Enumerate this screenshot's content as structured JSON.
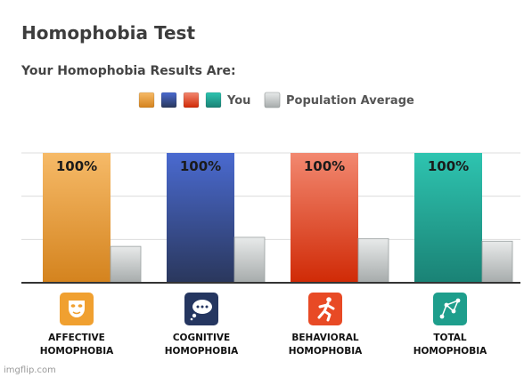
{
  "chart_data": {
    "type": "bar",
    "title": "Homophobia Test",
    "subtitle": "Your Homophobia Results Are:",
    "categories": [
      {
        "line1": "AFFECTIVE",
        "line2": "HOMOPHOBIA",
        "icon": "mask-icon"
      },
      {
        "line1": "COGNITIVE",
        "line2": "HOMOPHOBIA",
        "icon": "thought-bubble-icon"
      },
      {
        "line1": "BEHAVIORAL",
        "line2": "HOMOPHOBIA",
        "icon": "running-person-icon"
      },
      {
        "line1": "TOTAL",
        "line2": "HOMOPHOBIA",
        "icon": "network-graph-icon"
      }
    ],
    "series": [
      {
        "name": "You",
        "values": [
          100,
          100,
          100,
          100
        ],
        "labels": [
          "100%",
          "100%",
          "100%",
          "100%"
        ]
      },
      {
        "name": "Population Average",
        "values": [
          28,
          35,
          34,
          32
        ]
      }
    ],
    "ylim": [
      0,
      100
    ],
    "grid": true,
    "legend_position": "top-center",
    "colors": {
      "you": [
        {
          "top": "#f6ba68",
          "bottom": "#d4831e"
        },
        {
          "top": "#4a6ad0",
          "bottom": "#2a375c"
        },
        {
          "top": "#f28870",
          "bottom": "#d02a06"
        },
        {
          "top": "#2ec4b0",
          "bottom": "#1a8275"
        }
      ],
      "average": {
        "top": "#e8eaea",
        "bottom": "#a6abab"
      },
      "icon_bg": [
        "#f0a030",
        "#253660",
        "#e84a25",
        "#1e9e8c"
      ]
    }
  },
  "watermark": "imgflip.com"
}
